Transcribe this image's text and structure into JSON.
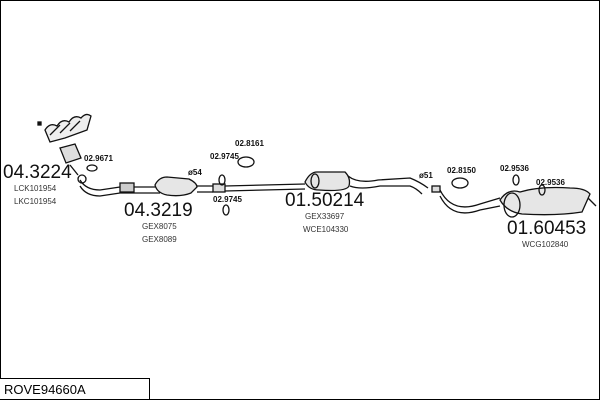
{
  "diagram_code": "ROVE94660A",
  "parts": [
    {
      "number": "04.3224",
      "refs": [
        "LCK101954",
        "LKC101954"
      ]
    },
    {
      "number": "04.3219",
      "refs": [
        "GEX8075",
        "GEX8089"
      ]
    },
    {
      "number": "01.50214",
      "refs": [
        "GEX33697",
        "WCE104330"
      ]
    },
    {
      "number": "01.60453",
      "refs": [
        "WCG102840"
      ]
    }
  ],
  "small_parts": [
    "02.9671",
    "02.9745",
    "02.8161",
    "02.9745",
    "02.8150",
    "02.9536",
    "02.9536"
  ],
  "diameters": [
    "ø54",
    "ø51"
  ]
}
